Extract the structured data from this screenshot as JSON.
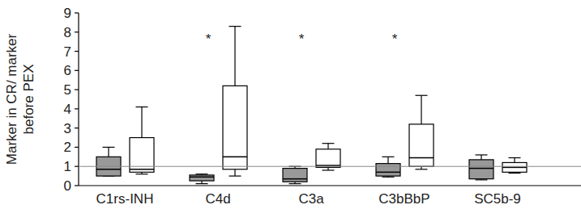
{
  "chart_data": {
    "type": "box",
    "y_label": "Marker in CR/ marker before PEX",
    "categories": [
      "C1rs-INH",
      "C4d",
      "C3a",
      "C3bBbP",
      "SC5b-9"
    ],
    "series": [
      {
        "color": "#999999",
        "min": [
          0.5,
          0.1,
          0.1,
          0.45,
          0.3
        ],
        "q1": [
          0.5,
          0.25,
          0.2,
          0.5,
          0.35
        ],
        "median": [
          0.85,
          0.45,
          0.35,
          0.7,
          0.9
        ],
        "q3": [
          1.5,
          0.55,
          0.9,
          1.15,
          1.35
        ],
        "max": [
          2.0,
          0.6,
          1.0,
          1.5,
          1.6
        ]
      },
      {
        "color": "#ffffff",
        "min": [
          0.6,
          0.5,
          0.8,
          0.85,
          0.65
        ],
        "q1": [
          0.7,
          0.85,
          0.95,
          1.0,
          0.7
        ],
        "median": [
          0.85,
          1.5,
          1.05,
          1.45,
          0.95
        ],
        "q3": [
          2.5,
          5.2,
          1.9,
          3.2,
          1.2
        ],
        "max": [
          4.1,
          8.3,
          2.2,
          4.7,
          1.45
        ]
      }
    ],
    "reference_lines": [
      1
    ],
    "annotations": [
      {
        "text": "*",
        "category": "C4d"
      },
      {
        "text": "*",
        "category": "C3a"
      },
      {
        "text": "*",
        "category": "C3bBbP"
      }
    ],
    "ylim": [
      0,
      9
    ],
    "yticks": [
      0,
      1,
      2,
      3,
      4,
      5,
      6,
      7,
      8,
      9
    ]
  }
}
